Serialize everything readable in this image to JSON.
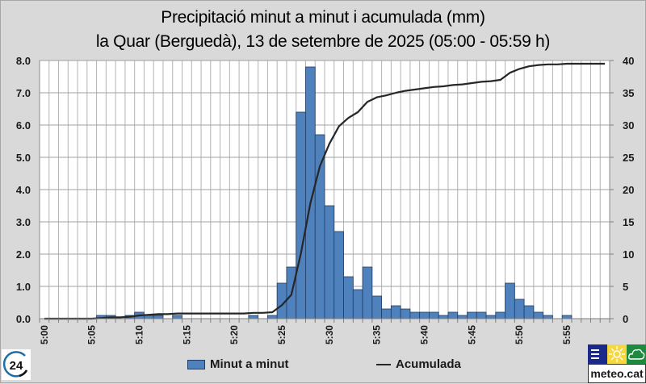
{
  "title": {
    "line1": "Precipitació minut a minut i acumulada (mm)",
    "line2": "la Quar (Berguedà), 13 de setembre de 2025 (05:00 - 05:59 h)"
  },
  "legend": {
    "bars_label": "Minut a minut",
    "line_label": "Acumulada"
  },
  "logos": {
    "left_badge": "24",
    "right_brand": "meteo.cat"
  },
  "colors": {
    "bar_fill": "#4f81bd",
    "bar_border": "#1f3d66",
    "line": "#262626",
    "background": "#d9d9d9",
    "plot_bg": "#ffffff",
    "grid": "#b3b3b3"
  },
  "chart_data": {
    "type": "bar+line",
    "title": "Precipitació minut a minut i acumulada (mm)",
    "subtitle": "la Quar (Berguedà), 13 de setembre de 2025 (05:00 - 05:59 h)",
    "xlabel": "",
    "ylabel_left": "",
    "ylabel_right": "",
    "x_tick_labels": [
      "5:00",
      "5:05",
      "5:10",
      "5:15",
      "5:20",
      "5:25",
      "5:30",
      "5:35",
      "5:40",
      "5:45",
      "5:50",
      "5:55"
    ],
    "y_left_ticks": [
      "0.0",
      "1.0",
      "2.0",
      "3.0",
      "4.0",
      "5.0",
      "6.0",
      "7.0",
      "8.0"
    ],
    "y_right_ticks": [
      "0",
      "5",
      "10",
      "15",
      "20",
      "25",
      "30",
      "35",
      "40"
    ],
    "ylim_left": [
      0,
      8
    ],
    "ylim_right": [
      0,
      40
    ],
    "grid": true,
    "legend_position": "bottom",
    "categories": [
      "5:00",
      "5:01",
      "5:02",
      "5:03",
      "5:04",
      "5:05",
      "5:06",
      "5:07",
      "5:08",
      "5:09",
      "5:10",
      "5:11",
      "5:12",
      "5:13",
      "5:14",
      "5:15",
      "5:16",
      "5:17",
      "5:18",
      "5:19",
      "5:20",
      "5:21",
      "5:22",
      "5:23",
      "5:24",
      "5:25",
      "5:26",
      "5:27",
      "5:28",
      "5:29",
      "5:30",
      "5:31",
      "5:32",
      "5:33",
      "5:34",
      "5:35",
      "5:36",
      "5:37",
      "5:38",
      "5:39",
      "5:40",
      "5:41",
      "5:42",
      "5:43",
      "5:44",
      "5:45",
      "5:46",
      "5:47",
      "5:48",
      "5:49",
      "5:50",
      "5:51",
      "5:52",
      "5:53",
      "5:54",
      "5:55",
      "5:56",
      "5:57",
      "5:58",
      "5:59"
    ],
    "series": [
      {
        "name": "Minut a minut",
        "type": "bar",
        "axis": "left",
        "values": [
          0,
          0,
          0,
          0,
          0,
          0,
          0.1,
          0.1,
          0,
          0.1,
          0.2,
          0.1,
          0.1,
          0,
          0.1,
          0,
          0,
          0,
          0,
          0,
          0,
          0,
          0.1,
          0,
          0.1,
          1.1,
          1.6,
          6.4,
          7.8,
          5.7,
          3.5,
          2.7,
          1.3,
          0.9,
          1.6,
          0.7,
          0.3,
          0.4,
          0.3,
          0.2,
          0.2,
          0.2,
          0.1,
          0.2,
          0.1,
          0.2,
          0.2,
          0.1,
          0.2,
          1.1,
          0.6,
          0.4,
          0.2,
          0.1,
          0,
          0.1,
          0,
          0,
          0,
          0
        ]
      },
      {
        "name": "Acumulada",
        "type": "line",
        "axis": "right",
        "values": [
          0,
          0,
          0,
          0,
          0,
          0,
          0.1,
          0.2,
          0.2,
          0.3,
          0.5,
          0.6,
          0.7,
          0.7,
          0.8,
          0.8,
          0.8,
          0.8,
          0.8,
          0.8,
          0.8,
          0.8,
          0.9,
          0.9,
          1.0,
          2.1,
          3.7,
          10.1,
          17.9,
          23.6,
          27.1,
          29.8,
          31.1,
          32.0,
          33.6,
          34.3,
          34.6,
          35.0,
          35.3,
          35.5,
          35.7,
          35.9,
          36.0,
          36.2,
          36.3,
          36.5,
          36.7,
          36.8,
          37.0,
          38.1,
          38.7,
          39.1,
          39.3,
          39.4,
          39.4,
          39.5,
          39.5,
          39.5,
          39.5,
          39.5
        ]
      }
    ]
  }
}
